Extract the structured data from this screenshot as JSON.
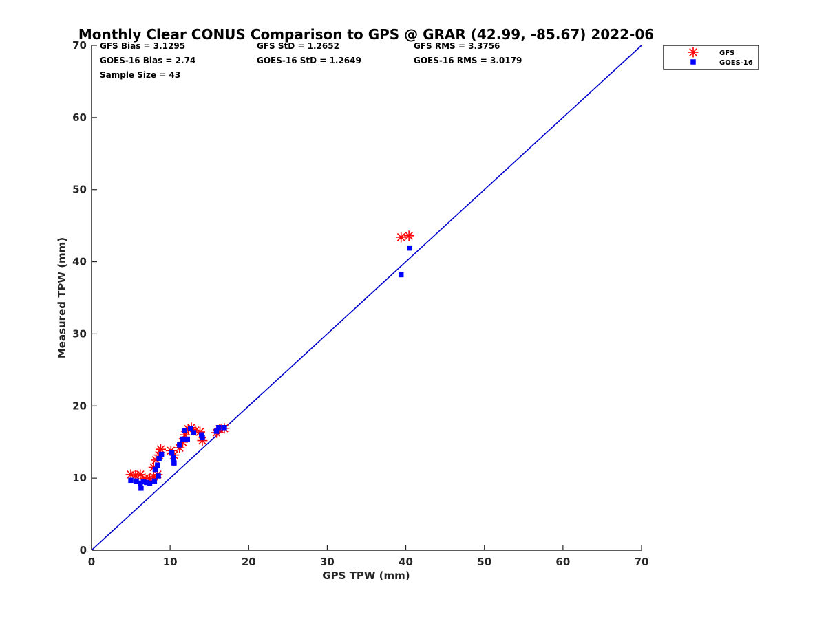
{
  "chart_data": {
    "type": "scatter",
    "title": "Monthly Clear CONUS Comparison to GPS @ GRAR (42.99, -85.67) 2022-06",
    "xlabel": "GPS TPW (mm)",
    "ylabel": "Measured TPW (mm)",
    "xlim": [
      0,
      70
    ],
    "ylim": [
      0,
      70
    ],
    "x_ticks": [
      0,
      10,
      20,
      30,
      40,
      50,
      60,
      70
    ],
    "y_ticks": [
      0,
      10,
      20,
      30,
      40,
      50,
      60,
      70
    ],
    "x_tick_labels": [
      "0",
      "10",
      "20",
      "30",
      "40",
      "50",
      "60",
      "70"
    ],
    "y_tick_labels": [
      "0",
      "10",
      "20",
      "30",
      "40",
      "50",
      "60",
      "70"
    ],
    "grid": false,
    "legend_position": "top-right-outside",
    "reference_line": {
      "name": "1:1 line",
      "x": [
        0,
        70
      ],
      "y": [
        0,
        70
      ],
      "color": "#0000cc"
    },
    "stats": [
      "GFS Bias = 3.1295",
      "GFS StD = 1.2652",
      "GFS RMS = 3.3756",
      "GOES-16 Bias = 2.74",
      "GOES-16 StD = 1.2649",
      "GOES-16 RMS = 3.0179",
      "Sample Size = 43"
    ],
    "series": [
      {
        "name": "GFS",
        "marker": "asterisk",
        "color": "#ff0000",
        "points": [
          [
            5.0,
            10.5
          ],
          [
            5.6,
            10.4
          ],
          [
            6.2,
            10.5
          ],
          [
            6.8,
            10.0
          ],
          [
            7.4,
            9.9
          ],
          [
            7.9,
            10.2
          ],
          [
            8.4,
            10.5
          ],
          [
            7.9,
            11.5
          ],
          [
            8.2,
            12.5
          ],
          [
            8.6,
            13.2
          ],
          [
            8.8,
            14.0
          ],
          [
            10.1,
            13.8
          ],
          [
            10.5,
            13.2
          ],
          [
            11.2,
            14.2
          ],
          [
            11.6,
            15.0
          ],
          [
            11.9,
            16.0
          ],
          [
            12.3,
            16.8
          ],
          [
            12.7,
            17.0
          ],
          [
            13.2,
            16.6
          ],
          [
            13.8,
            16.4
          ],
          [
            14.1,
            15.2
          ],
          [
            15.9,
            16.3
          ],
          [
            16.3,
            16.8
          ],
          [
            16.9,
            16.9
          ],
          [
            39.4,
            43.4
          ],
          [
            40.4,
            43.6
          ]
        ]
      },
      {
        "name": "GOES-16",
        "marker": "square",
        "color": "#0000ff",
        "points": [
          [
            5.0,
            9.7
          ],
          [
            5.7,
            9.6
          ],
          [
            6.2,
            9.3
          ],
          [
            6.3,
            8.6
          ],
          [
            6.6,
            9.5
          ],
          [
            7.0,
            9.4
          ],
          [
            7.4,
            9.3
          ],
          [
            8.0,
            9.6
          ],
          [
            8.5,
            10.3
          ],
          [
            8.1,
            11.2
          ],
          [
            8.4,
            11.8
          ],
          [
            8.6,
            12.7
          ],
          [
            8.9,
            13.3
          ],
          [
            10.2,
            13.5
          ],
          [
            10.4,
            12.8
          ],
          [
            10.5,
            12.1
          ],
          [
            11.2,
            14.6
          ],
          [
            11.6,
            15.4
          ],
          [
            11.8,
            16.6
          ],
          [
            12.2,
            15.4
          ],
          [
            12.6,
            16.9
          ],
          [
            13.0,
            16.3
          ],
          [
            14.0,
            16.0
          ],
          [
            14.1,
            15.6
          ],
          [
            15.9,
            16.5
          ],
          [
            16.2,
            17.0
          ],
          [
            16.9,
            17.0
          ],
          [
            39.4,
            38.2
          ],
          [
            40.5,
            41.9
          ]
        ]
      }
    ]
  }
}
